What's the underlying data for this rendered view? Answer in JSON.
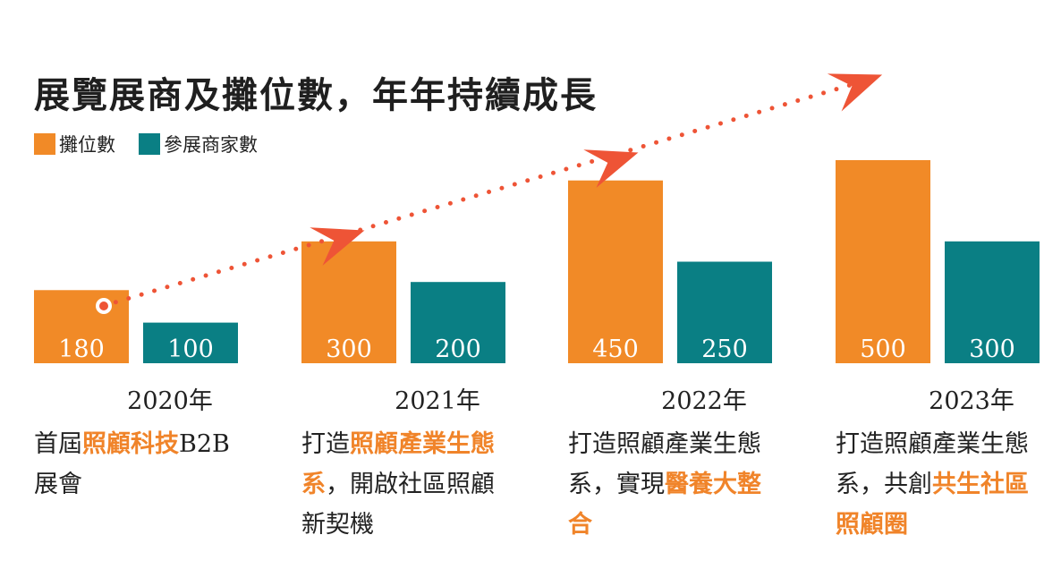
{
  "title": "展覽展商及攤位數，年年持續成長",
  "legend": [
    {
      "label": "攤位數",
      "color": "#f18a27"
    },
    {
      "label": "參展商家數",
      "color": "#0a7f84"
    }
  ],
  "colors": {
    "arrow": "#ee5436",
    "highlight": "#f0842a"
  },
  "chart_data": {
    "type": "bar",
    "categories": [
      "2020年",
      "2021年",
      "2022年",
      "2023年"
    ],
    "series": [
      {
        "name": "攤位數",
        "values": [
          180,
          300,
          450,
          500
        ]
      },
      {
        "name": "參展商家數",
        "values": [
          100,
          200,
          250,
          300
        ]
      }
    ],
    "title": "展覽展商及攤位數，年年持續成長",
    "xlabel": "",
    "ylabel": "",
    "ylim": [
      0,
      500
    ],
    "grid": false,
    "legend_position": "top-left"
  },
  "descriptions": [
    {
      "parts": [
        {
          "text": "首屆",
          "hl": false
        },
        {
          "text": "照顧科技",
          "hl": true
        },
        {
          "text": "B2B展會",
          "hl": false
        }
      ]
    },
    {
      "parts": [
        {
          "text": "打造",
          "hl": false
        },
        {
          "text": "照顧產業生態系",
          "hl": true
        },
        {
          "text": "，開啟社區照顧新契機",
          "hl": false
        }
      ]
    },
    {
      "parts": [
        {
          "text": "打造照顧產業生態系，實現",
          "hl": false
        },
        {
          "text": "醫養大整合",
          "hl": true
        }
      ]
    },
    {
      "parts": [
        {
          "text": "打造照顧產業生態系，共創",
          "hl": false
        },
        {
          "text": "共生社區照顧圈",
          "hl": true
        }
      ]
    }
  ]
}
